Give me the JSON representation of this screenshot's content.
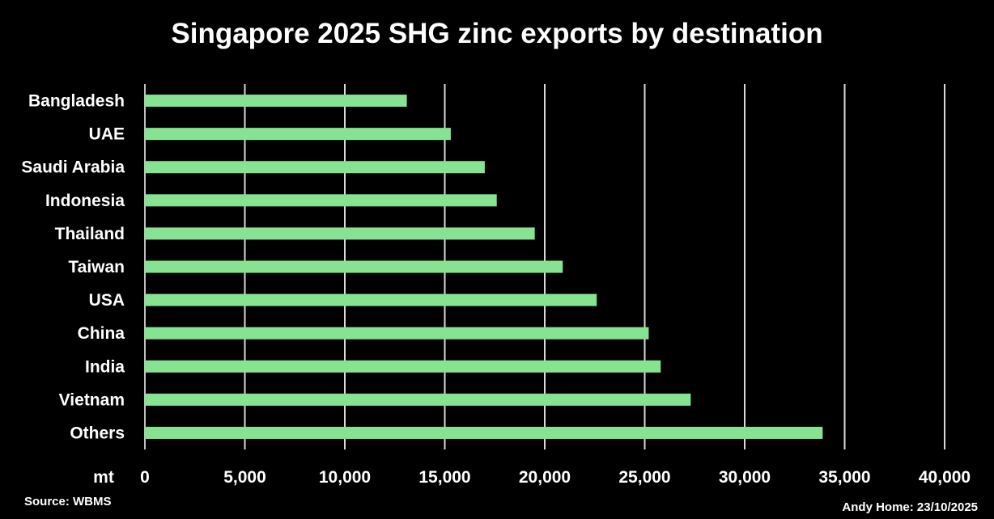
{
  "chart_data": {
    "type": "bar",
    "orientation": "horizontal",
    "title": "Singapore 2025 SHG zinc exports by destination",
    "xlabel": "mt",
    "categories": [
      "Bangladesh",
      "UAE",
      "Saudi Arabia",
      "Indonesia",
      "Thailand",
      "Taiwan",
      "USA",
      "China",
      "India",
      "Vietnam",
      "Others"
    ],
    "values": [
      13100,
      15300,
      17000,
      17600,
      19500,
      20900,
      22600,
      25200,
      25800,
      27300,
      33900
    ],
    "xlim": [
      0,
      40000
    ],
    "xticks": [
      "0",
      "5,000",
      "10,000",
      "15,000",
      "20,000",
      "25,000",
      "30,000",
      "35,000",
      "40,000"
    ],
    "grid": true,
    "bar_color": "#86e391",
    "background": "#000000"
  },
  "footer": {
    "source": "Source: WBMS",
    "credit": "Andy Home: 23/10/2025"
  }
}
